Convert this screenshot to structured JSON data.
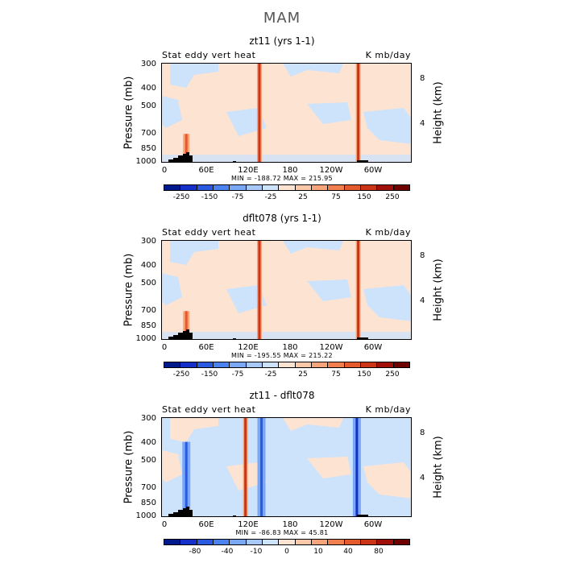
{
  "title": "MAM",
  "panels": [
    {
      "title": "zt11 (yrs 1-1)",
      "left_label": "Stat eddy vert heat",
      "right_label": "K mb/day",
      "min_max": "MIN = -188.72   MAX = 215.95",
      "colorbar_labels": [
        "-250",
        "-150",
        "-75",
        "-25",
        "25",
        "75",
        "150",
        "250"
      ]
    },
    {
      "title": "dflt078 (yrs 1-1)",
      "left_label": "Stat eddy vert heat",
      "right_label": "K mb/day",
      "min_max": "MIN = -195.55   MAX = 215.22",
      "colorbar_labels": [
        "-250",
        "-150",
        "-75",
        "-25",
        "25",
        "75",
        "150",
        "250"
      ]
    },
    {
      "title": "zt11 - dflt078",
      "left_label": "Stat eddy vert heat",
      "right_label": "K mb/day",
      "min_max": "MIN = -86.83   MAX = 45.81",
      "colorbar_labels": [
        "-80",
        "-40",
        "-10",
        "0",
        "10",
        "40",
        "80"
      ]
    }
  ],
  "axes": {
    "ylabel": "Pressure (mb)",
    "y2label": "Height (km)",
    "y_ticks": [
      "300",
      "400",
      "500",
      "700",
      "850",
      "1000"
    ],
    "y2_ticks": [
      "8",
      "4"
    ],
    "x_ticks": [
      "0",
      "60E",
      "120E",
      "180",
      "120W",
      "60W"
    ]
  },
  "colors": {
    "colorbar": [
      "#001a8c",
      "#1530c8",
      "#2a5ae0",
      "#4a82f0",
      "#7aa8f5",
      "#a8c8f8",
      "#cde2fb",
      "#fde4d2",
      "#fbc9a8",
      "#f7a47a",
      "#f07e4e",
      "#e55a2c",
      "#cc3418",
      "#a01008",
      "#6e0000"
    ],
    "diff_colorbar": [
      "#001a8c",
      "#1530c8",
      "#2a5ae0",
      "#4a82f0",
      "#7aa8f5",
      "#a8c8f8",
      "#cde2fb",
      "#fde4d2",
      "#fbc9a8",
      "#f7a47a",
      "#f07e4e",
      "#e55a2c",
      "#cc3418",
      "#a01008",
      "#6e0000"
    ]
  },
  "chart_data": [
    {
      "type": "heatmap",
      "title": "zt11 (yrs 1-1)",
      "subtitle_left": "Stat eddy vert heat",
      "units": "K mb/day",
      "xlabel": "",
      "ylabel": "Pressure (mb)",
      "y2label": "Height (km)",
      "x_ticks": [
        "0",
        "60E",
        "120E",
        "180",
        "120W",
        "60W"
      ],
      "y_ticks": [
        300,
        400,
        500,
        700,
        850,
        1000
      ],
      "y2_ticks": [
        8,
        4
      ],
      "ylim": [
        1000,
        300
      ],
      "min": -188.72,
      "max": 215.95,
      "contour_levels": [
        -250,
        -150,
        -75,
        -25,
        25,
        75,
        150,
        250
      ],
      "features": [
        {
          "longitude": 140,
          "sign": "positive",
          "level_range": [
            300,
            1000
          ],
          "intensity": "strong"
        },
        {
          "longitude": 282,
          "sign": "positive",
          "level_range": [
            300,
            1000
          ],
          "intensity": "strong"
        },
        {
          "longitude": 35,
          "sign": "positive",
          "level_range": [
            700,
            900
          ],
          "intensity": "moderate"
        }
      ]
    },
    {
      "type": "heatmap",
      "title": "dflt078 (yrs 1-1)",
      "subtitle_left": "Stat eddy vert heat",
      "units": "K mb/day",
      "xlabel": "",
      "ylabel": "Pressure (mb)",
      "y2label": "Height (km)",
      "x_ticks": [
        "0",
        "60E",
        "120E",
        "180",
        "120W",
        "60W"
      ],
      "y_ticks": [
        300,
        400,
        500,
        700,
        850,
        1000
      ],
      "y2_ticks": [
        8,
        4
      ],
      "ylim": [
        1000,
        300
      ],
      "min": -195.55,
      "max": 215.22,
      "contour_levels": [
        -250,
        -150,
        -75,
        -25,
        25,
        75,
        150,
        250
      ],
      "features": [
        {
          "longitude": 140,
          "sign": "positive",
          "level_range": [
            300,
            1000
          ],
          "intensity": "strong"
        },
        {
          "longitude": 282,
          "sign": "positive",
          "level_range": [
            300,
            1000
          ],
          "intensity": "strong"
        },
        {
          "longitude": 35,
          "sign": "positive",
          "level_range": [
            700,
            900
          ],
          "intensity": "moderate"
        }
      ]
    },
    {
      "type": "heatmap",
      "title": "zt11 - dflt078",
      "subtitle_left": "Stat eddy vert heat",
      "units": "K mb/day",
      "xlabel": "",
      "ylabel": "Pressure (mb)",
      "y2label": "Height (km)",
      "x_ticks": [
        "0",
        "60E",
        "120E",
        "180",
        "120W",
        "60W"
      ],
      "y_ticks": [
        300,
        400,
        500,
        700,
        850,
        1000
      ],
      "y2_ticks": [
        8,
        4
      ],
      "ylim": [
        1000,
        300
      ],
      "min": -86.83,
      "max": 45.81,
      "contour_levels": [
        -80,
        -40,
        -10,
        0,
        10,
        40,
        80
      ],
      "features": [
        {
          "longitude": 120,
          "sign": "positive",
          "level_range": [
            300,
            1000
          ],
          "intensity": "strong"
        },
        {
          "longitude": 143,
          "sign": "negative",
          "level_range": [
            300,
            1000
          ],
          "intensity": "moderate"
        },
        {
          "longitude": 280,
          "sign": "negative",
          "level_range": [
            300,
            1000
          ],
          "intensity": "strong"
        },
        {
          "longitude": 35,
          "sign": "negative",
          "level_range": [
            400,
            900
          ],
          "intensity": "moderate"
        }
      ]
    }
  ]
}
